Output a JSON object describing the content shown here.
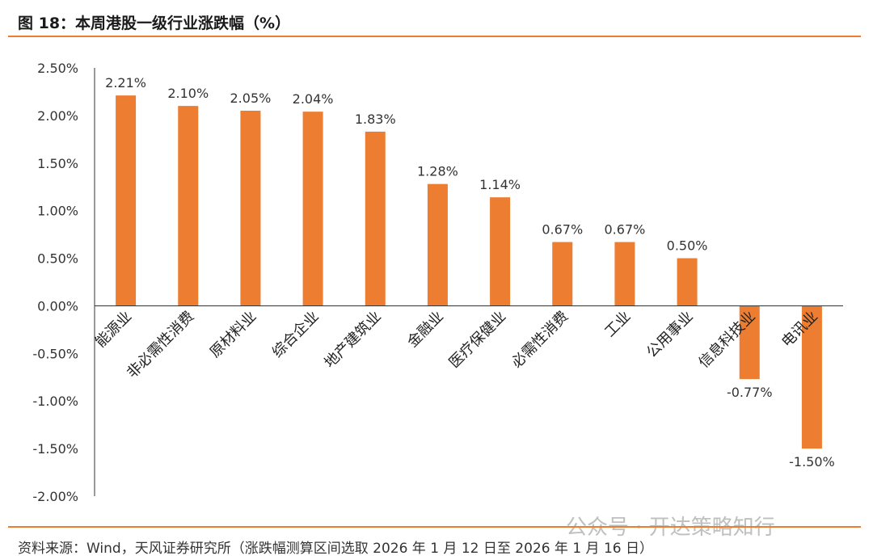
{
  "header": {
    "title": "图 18：本周港股一级行业涨跌幅（%）"
  },
  "footer": {
    "source": "资料来源：Wind，天风证券研究所（涨跌幅测算区间选取 2026 年 1 月 12 日至 2026 年 1 月 16 日）",
    "watermark": "公众号 · 开达策略知行"
  },
  "colors": {
    "bar": "#ED7D31",
    "rule": "#ED7D31"
  },
  "chart_data": {
    "type": "bar",
    "categories": [
      "能源业",
      "非必需性消费",
      "原材料业",
      "综合企业",
      "地产建筑业",
      "金融业",
      "医疗保健业",
      "必需性消费",
      "工业",
      "公用事业",
      "信息科技业",
      "电讯业"
    ],
    "values": [
      2.21,
      2.1,
      2.05,
      2.04,
      1.83,
      1.28,
      1.14,
      0.67,
      0.67,
      0.5,
      -0.77,
      -1.5
    ],
    "data_labels": [
      "2.21%",
      "2.10%",
      "2.05%",
      "2.04%",
      "1.83%",
      "1.28%",
      "1.14%",
      "0.67%",
      "0.67%",
      "0.50%",
      "-0.77%",
      "-1.50%"
    ],
    "yticks": [
      "2.50%",
      "2.00%",
      "1.50%",
      "1.00%",
      "0.50%",
      "0.00%",
      "-0.50%",
      "-1.00%",
      "-1.50%",
      "-2.00%"
    ],
    "ylim": [
      -2.0,
      2.5
    ],
    "grid": false,
    "legend": "none"
  }
}
